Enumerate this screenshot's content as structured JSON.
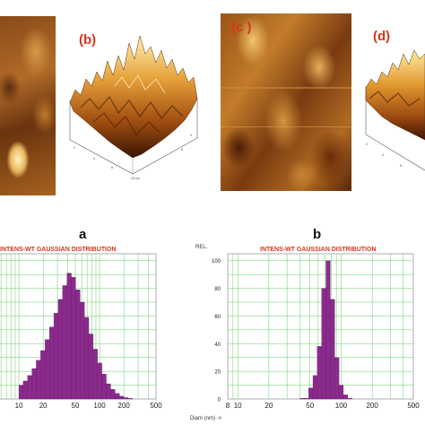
{
  "panels": [
    {
      "id": "a",
      "label": ""
    },
    {
      "id": "b",
      "label": "(b)"
    },
    {
      "id": "c",
      "label": "(c )"
    },
    {
      "id": "d",
      "label": "(d)"
    }
  ],
  "colors": {
    "panel_label": "#d9341c",
    "bar_fill": "#8b2a8d",
    "grid": "#66cc66",
    "chart_title": "#d9341c"
  },
  "chart_data": [
    {
      "type": "bar",
      "panel_label": "a",
      "title": "INTENS-WT GAUSSIAN DISTRIBUTION",
      "x_scale": "log",
      "xlim": [
        5,
        500
      ],
      "ylim": [
        0,
        105
      ],
      "x_ticks": [
        "10",
        "20",
        "50",
        "100",
        "200",
        "500"
      ],
      "x_tick_values": [
        10,
        20,
        50,
        100,
        200,
        500
      ],
      "grid": true,
      "bars": [
        {
          "x0": 10.0,
          "x1": 11.3,
          "value": 10
        },
        {
          "x0": 11.3,
          "x1": 12.8,
          "value": 13
        },
        {
          "x0": 12.8,
          "x1": 14.5,
          "value": 17
        },
        {
          "x0": 14.5,
          "x1": 16.4,
          "value": 22
        },
        {
          "x0": 16.4,
          "x1": 18.6,
          "value": 28
        },
        {
          "x0": 18.6,
          "x1": 21.1,
          "value": 35
        },
        {
          "x0": 21.1,
          "x1": 23.9,
          "value": 43
        },
        {
          "x0": 23.9,
          "x1": 27.1,
          "value": 52
        },
        {
          "x0": 27.1,
          "x1": 30.7,
          "value": 62
        },
        {
          "x0": 30.7,
          "x1": 34.8,
          "value": 72
        },
        {
          "x0": 34.8,
          "x1": 39.4,
          "value": 82
        },
        {
          "x0": 39.4,
          "x1": 44.6,
          "value": 91
        },
        {
          "x0": 44.6,
          "x1": 50.5,
          "value": 88
        },
        {
          "x0": 50.5,
          "x1": 57.2,
          "value": 79
        },
        {
          "x0": 57.2,
          "x1": 64.8,
          "value": 70
        },
        {
          "x0": 64.8,
          "x1": 73.4,
          "value": 59
        },
        {
          "x0": 73.4,
          "x1": 83.2,
          "value": 47
        },
        {
          "x0": 83.2,
          "x1": 94.2,
          "value": 36
        },
        {
          "x0": 94.2,
          "x1": 106.7,
          "value": 26
        },
        {
          "x0": 106.7,
          "x1": 120.9,
          "value": 18
        },
        {
          "x0": 120.9,
          "x1": 137.0,
          "value": 11
        },
        {
          "x0": 137.0,
          "x1": 155.2,
          "value": 7
        },
        {
          "x0": 155.2,
          "x1": 175.8,
          "value": 4
        },
        {
          "x0": 175.8,
          "x1": 199.2,
          "value": 2
        },
        {
          "x0": 199.2,
          "x1": 225.6,
          "value": 1
        },
        {
          "x0": 225.6,
          "x1": 255.6,
          "value": 0.5
        }
      ]
    },
    {
      "type": "bar",
      "panel_label": "b",
      "title": "INTENS-WT GAUSSIAN DISTRIBUTION",
      "ylabel": "REL.",
      "xlabel": "Diam (nm) ->",
      "x_scale": "log",
      "xlim": [
        8,
        500
      ],
      "ylim": [
        0,
        105
      ],
      "x_ticks": [
        "8",
        "10",
        "20",
        "50",
        "100",
        "200",
        "500"
      ],
      "x_tick_values": [
        8,
        10,
        20,
        50,
        100,
        200,
        500
      ],
      "y_ticks": [
        "0",
        "20",
        "40",
        "60",
        "80",
        "100"
      ],
      "y_tick_values": [
        0,
        20,
        40,
        60,
        80,
        100
      ],
      "grid": true,
      "bars": [
        {
          "x0": 40.0,
          "x1": 44.0,
          "value": 0.5
        },
        {
          "x0": 44.0,
          "x1": 48.5,
          "value": 0.5
        },
        {
          "x0": 48.5,
          "x1": 53.4,
          "value": 8
        },
        {
          "x0": 53.4,
          "x1": 58.8,
          "value": 17
        },
        {
          "x0": 58.8,
          "x1": 64.8,
          "value": 38
        },
        {
          "x0": 64.8,
          "x1": 71.4,
          "value": 80
        },
        {
          "x0": 71.4,
          "x1": 78.6,
          "value": 100
        },
        {
          "x0": 78.6,
          "x1": 86.6,
          "value": 72
        },
        {
          "x0": 86.6,
          "x1": 95.4,
          "value": 30
        },
        {
          "x0": 95.4,
          "x1": 105.1,
          "value": 10
        },
        {
          "x0": 105.1,
          "x1": 115.8,
          "value": 3
        },
        {
          "x0": 115.8,
          "x1": 127.5,
          "value": 0.5
        }
      ]
    }
  ]
}
